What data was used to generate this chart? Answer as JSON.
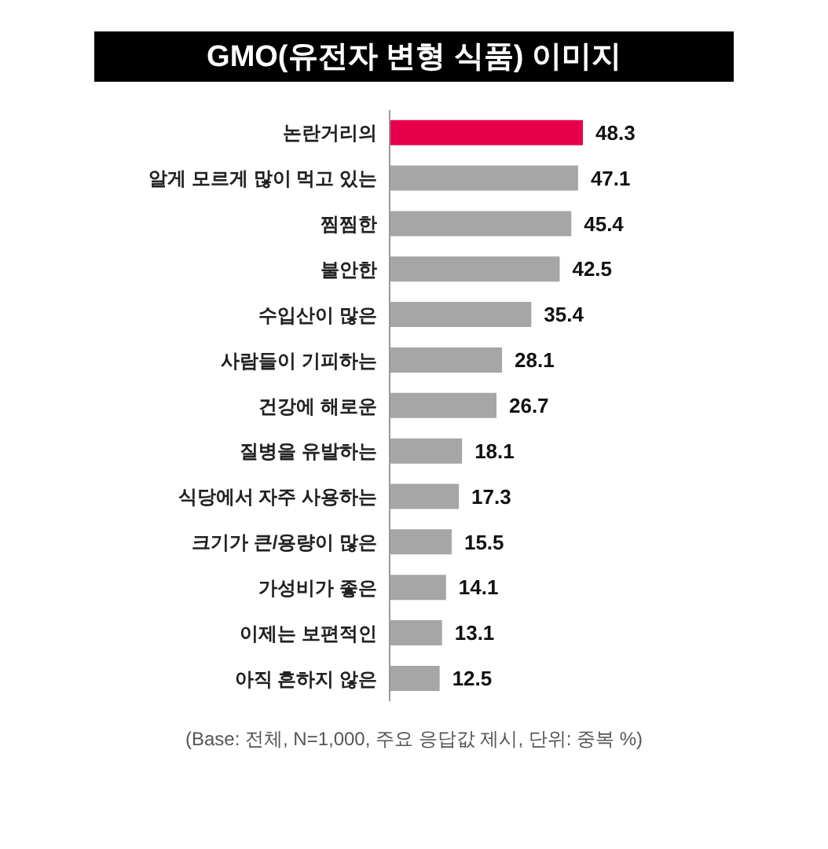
{
  "chart_data": {
    "type": "bar",
    "orientation": "horizontal",
    "title": "GMO(유전자 변형 식품) 이미지",
    "categories": [
      "논란거리의",
      "알게 모르게 많이 먹고 있는",
      "찜찜한",
      "불안한",
      "수입산이 많은",
      "사람들이 기피하는",
      "건강에 해로운",
      "질병을 유발하는",
      "식당에서 자주 사용하는",
      "크기가 큰/용량이 많은",
      "가성비가 좋은",
      "이제는 보편적인",
      "아직 흔하지 않은"
    ],
    "values": [
      48.3,
      47.1,
      45.4,
      42.5,
      35.4,
      28.1,
      26.7,
      18.1,
      17.3,
      15.5,
      14.1,
      13.1,
      12.5
    ],
    "colors": [
      "#e6004c",
      "#a6a6a6",
      "#a6a6a6",
      "#a6a6a6",
      "#a6a6a6",
      "#a6a6a6",
      "#a6a6a6",
      "#a6a6a6",
      "#a6a6a6",
      "#a6a6a6",
      "#a6a6a6",
      "#a6a6a6",
      "#a6a6a6"
    ],
    "tick_labels": "y",
    "data_labels": true,
    "annotations": [
      "(Base: 전체, N=1,000, 주요 응답값 제시, 단위: 중복 %)"
    ]
  }
}
